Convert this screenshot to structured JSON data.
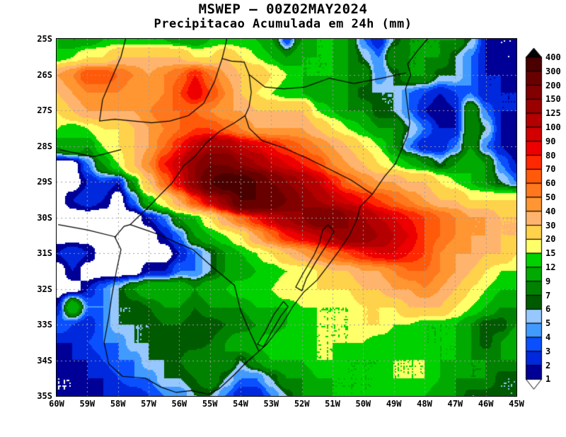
{
  "title": {
    "line1": "MSWEP – 00Z02MAY2024",
    "line2": "Precipitacao Acumulada em 24h (mm)"
  },
  "axes": {
    "lat_ticks": [
      "25S",
      "26S",
      "27S",
      "28S",
      "29S",
      "30S",
      "31S",
      "32S",
      "33S",
      "34S",
      "35S"
    ],
    "lon_ticks": [
      "60W",
      "59W",
      "58W",
      "57W",
      "56W",
      "55W",
      "54W",
      "53W",
      "52W",
      "51W",
      "50W",
      "49W",
      "48W",
      "47W",
      "46W",
      "45W"
    ]
  },
  "chart_data": {
    "type": "heatmap",
    "title": "MSWEP – 00Z02MAY2024",
    "subtitle": "Precipitacao Acumulada em 24h (mm)",
    "units": "mm",
    "lon_extent_deg_west": [
      60,
      45
    ],
    "lat_extent_deg_south": [
      25,
      35
    ],
    "grid": {
      "lon_start_west": 60,
      "lon_step": 0.5,
      "lat_start_south": 25,
      "lat_step": 0.5,
      "values": [
        [
          12,
          9,
          9,
          12,
          12,
          12,
          12,
          12,
          9,
          9,
          12,
          12,
          12,
          12,
          9,
          3,
          9,
          12,
          12,
          9,
          4,
          2,
          6,
          9,
          9,
          9,
          9,
          6,
          2,
          1,
          1
        ],
        [
          12,
          15,
          20,
          20,
          30,
          30,
          30,
          30,
          30,
          20,
          20,
          30,
          20,
          15,
          12,
          9,
          12,
          12,
          12,
          9,
          6,
          4,
          9,
          9,
          9,
          9,
          6,
          4,
          2,
          1,
          1
        ],
        [
          40,
          50,
          70,
          70,
          60,
          50,
          40,
          50,
          60,
          80,
          60,
          40,
          30,
          30,
          20,
          15,
          12,
          12,
          12,
          9,
          9,
          4,
          6,
          9,
          9,
          6,
          6,
          4,
          2,
          2,
          1
        ],
        [
          30,
          40,
          50,
          50,
          50,
          40,
          40,
          50,
          70,
          90,
          70,
          50,
          30,
          20,
          15,
          12,
          12,
          9,
          9,
          9,
          6,
          6,
          6,
          4,
          3,
          2,
          3,
          4,
          2,
          2,
          2
        ],
        [
          20,
          30,
          40,
          40,
          40,
          40,
          50,
          60,
          60,
          60,
          50,
          40,
          40,
          30,
          30,
          30,
          30,
          15,
          12,
          9,
          9,
          6,
          6,
          4,
          2,
          1,
          2,
          9,
          4,
          2,
          2
        ],
        [
          15,
          12,
          15,
          20,
          20,
          30,
          40,
          50,
          60,
          70,
          70,
          60,
          50,
          40,
          40,
          40,
          40,
          30,
          20,
          15,
          12,
          9,
          9,
          6,
          4,
          2,
          2,
          9,
          6,
          2,
          1
        ],
        [
          9,
          12,
          9,
          15,
          20,
          30,
          40,
          60,
          80,
          100,
          125,
          125,
          100,
          90,
          80,
          70,
          60,
          50,
          40,
          30,
          20,
          15,
          9,
          4,
          2,
          2,
          4,
          9,
          4,
          2,
          1
        ],
        [
          0,
          0,
          4,
          9,
          15,
          30,
          50,
          80,
          100,
          150,
          200,
          200,
          150,
          125,
          100,
          90,
          80,
          70,
          50,
          40,
          30,
          20,
          15,
          12,
          9,
          6,
          9,
          12,
          9,
          4,
          2
        ],
        [
          0,
          0,
          2,
          3,
          2,
          9,
          30,
          60,
          90,
          150,
          300,
          400,
          400,
          300,
          200,
          150,
          125,
          100,
          80,
          60,
          50,
          40,
          40,
          30,
          30,
          20,
          15,
          12,
          9,
          6,
          4
        ],
        [
          0,
          2,
          3,
          2,
          0,
          4,
          12,
          20,
          40,
          70,
          100,
          150,
          300,
          300,
          300,
          200,
          150,
          125,
          100,
          90,
          80,
          70,
          60,
          50,
          40,
          30,
          30,
          20,
          20,
          20,
          20
        ],
        [
          0,
          0,
          0,
          0,
          0,
          0,
          2,
          4,
          9,
          12,
          20,
          40,
          60,
          80,
          100,
          125,
          150,
          200,
          200,
          150,
          125,
          100,
          90,
          80,
          70,
          60,
          50,
          40,
          40,
          30,
          30
        ],
        [
          0,
          0,
          0,
          0,
          0,
          0,
          0,
          2,
          4,
          9,
          12,
          15,
          20,
          40,
          60,
          80,
          90,
          100,
          125,
          150,
          150,
          125,
          100,
          90,
          70,
          60,
          50,
          40,
          40,
          30,
          30
        ],
        [
          2,
          3,
          2,
          0,
          0,
          0,
          0,
          0,
          2,
          4,
          6,
          9,
          12,
          15,
          20,
          30,
          40,
          50,
          60,
          70,
          80,
          90,
          90,
          80,
          70,
          50,
          40,
          40,
          30,
          30,
          20
        ],
        [
          0,
          2,
          0,
          0,
          0,
          0,
          2,
          2,
          4,
          4,
          6,
          9,
          9,
          12,
          12,
          15,
          15,
          20,
          30,
          30,
          40,
          40,
          50,
          60,
          60,
          50,
          40,
          30,
          20,
          15,
          15
        ],
        [
          0,
          0,
          2,
          4,
          6,
          9,
          12,
          12,
          12,
          9,
          12,
          12,
          15,
          15,
          15,
          20,
          20,
          20,
          20,
          20,
          30,
          30,
          40,
          40,
          50,
          40,
          30,
          20,
          15,
          12,
          12
        ],
        [
          2,
          12,
          4,
          4,
          6,
          6,
          7,
          9,
          9,
          7,
          9,
          9,
          9,
          12,
          12,
          12,
          15,
          15,
          15,
          15,
          20,
          20,
          20,
          30,
          30,
          30,
          20,
          15,
          12,
          9,
          9
        ],
        [
          4,
          3,
          2,
          4,
          6,
          6,
          6,
          7,
          7,
          6,
          6,
          7,
          7,
          9,
          9,
          12,
          12,
          15,
          15,
          15,
          20,
          20,
          15,
          15,
          12,
          12,
          12,
          9,
          6,
          6,
          9
        ],
        [
          2,
          2,
          3,
          4,
          4,
          6,
          6,
          7,
          6,
          6,
          7,
          9,
          12,
          12,
          15,
          15,
          15,
          15,
          15,
          15,
          15,
          12,
          12,
          12,
          12,
          12,
          12,
          9,
          6,
          9,
          12
        ],
        [
          1,
          2,
          2,
          3,
          4,
          4,
          6,
          6,
          7,
          9,
          9,
          9,
          6,
          9,
          12,
          12,
          12,
          15,
          15,
          12,
          12,
          12,
          15,
          15,
          15,
          12,
          12,
          9,
          9,
          9,
          9
        ],
        [
          1,
          1,
          2,
          2,
          3,
          4,
          4,
          6,
          6,
          7,
          9,
          6,
          4,
          4,
          6,
          9,
          9,
          12,
          12,
          12,
          12,
          12,
          15,
          15,
          15,
          12,
          9,
          9,
          9,
          6,
          6
        ],
        [
          1,
          1,
          1,
          2,
          2,
          2,
          3,
          4,
          4,
          6,
          6,
          4,
          2,
          2,
          4,
          6,
          9,
          9,
          12,
          12,
          12,
          12,
          15,
          12,
          12,
          9,
          9,
          6,
          6,
          6,
          6
        ]
      ]
    },
    "colorbar": {
      "levels": [
        1,
        2,
        3,
        4,
        5,
        6,
        7,
        9,
        12,
        15,
        20,
        30,
        40,
        50,
        60,
        70,
        80,
        90,
        100,
        125,
        150,
        200,
        300,
        400
      ],
      "colors": [
        "#000096",
        "#0028dc",
        "#0a50ff",
        "#419bff",
        "#96c8ff",
        "#005a00",
        "#008200",
        "#00aa00",
        "#00d200",
        "#ffff69",
        "#ffd24b",
        "#ffb46e",
        "#ff9632",
        "#ff781e",
        "#ff5a0a",
        "#ff2800",
        "#ee0000",
        "#d20000",
        "#b40000",
        "#9b0000",
        "#820000",
        "#690000",
        "#4b0000",
        "#2d0000"
      ],
      "below_color": "#ffffff",
      "above_color": "#000000"
    },
    "borders": [
      [
        [
          47.9,
          25.0
        ],
        [
          48.2,
          25.3
        ],
        [
          48.55,
          25.7
        ],
        [
          48.45,
          26.0
        ],
        [
          48.62,
          26.4
        ],
        [
          48.55,
          26.9
        ],
        [
          48.48,
          27.35
        ],
        [
          48.55,
          27.7
        ],
        [
          48.75,
          28.1
        ],
        [
          48.95,
          28.5
        ],
        [
          49.3,
          28.85
        ],
        [
          49.7,
          29.35
        ],
        [
          50.1,
          29.7
        ],
        [
          50.2,
          30.05
        ],
        [
          50.45,
          30.5
        ],
        [
          50.8,
          30.95
        ],
        [
          51.1,
          31.3
        ],
        [
          51.5,
          31.75
        ],
        [
          51.95,
          32.1
        ],
        [
          52.3,
          32.5
        ],
        [
          52.65,
          33.0
        ],
        [
          53.15,
          33.55
        ],
        [
          53.4,
          33.75
        ],
        [
          53.8,
          34.05
        ],
        [
          54.2,
          34.4
        ],
        [
          54.7,
          34.8
        ],
        [
          55.05,
          34.95
        ],
        [
          55.6,
          34.85
        ],
        [
          56.1,
          34.9
        ],
        [
          56.6,
          34.75
        ],
        [
          57.1,
          34.5
        ],
        [
          57.85,
          34.45
        ],
        [
          58.3,
          34.1
        ],
        [
          58.45,
          33.5
        ],
        [
          58.3,
          32.8
        ],
        [
          58.2,
          32.2
        ],
        [
          58.05,
          31.5
        ],
        [
          57.9,
          30.9
        ],
        [
          58.1,
          30.55
        ],
        [
          57.8,
          30.25
        ],
        [
          57.6,
          30.2
        ],
        [
          57.3,
          29.95
        ],
        [
          57.05,
          29.75
        ],
        [
          56.6,
          29.35
        ],
        [
          56.25,
          29.05
        ],
        [
          55.85,
          28.55
        ],
        [
          55.5,
          28.3
        ],
        [
          55.1,
          27.9
        ],
        [
          54.7,
          27.6
        ],
        [
          54.2,
          27.35
        ],
        [
          53.85,
          27.15
        ],
        [
          53.72,
          26.9
        ],
        [
          53.65,
          26.5
        ],
        [
          53.72,
          26.0
        ],
        [
          53.88,
          25.65
        ],
        [
          54.3,
          25.62
        ],
        [
          54.6,
          25.55
        ],
        [
          54.5,
          25.2
        ],
        [
          54.45,
          25.0
        ]
      ],
      [
        [
          48.6,
          25.95
        ],
        [
          49.4,
          26.1
        ],
        [
          50.3,
          26.25
        ],
        [
          51.1,
          26.1
        ],
        [
          51.9,
          26.35
        ],
        [
          52.6,
          26.4
        ],
        [
          53.2,
          26.35
        ],
        [
          53.72,
          26.0
        ]
      ],
      [
        [
          49.7,
          29.35
        ],
        [
          50.4,
          28.95
        ],
        [
          51.1,
          28.65
        ],
        [
          51.8,
          28.35
        ],
        [
          52.6,
          28.05
        ],
        [
          53.3,
          27.85
        ],
        [
          53.72,
          27.5
        ],
        [
          53.85,
          27.15
        ]
      ],
      [
        [
          53.4,
          33.75
        ],
        [
          53.7,
          33.2
        ],
        [
          54.0,
          32.6
        ],
        [
          54.2,
          31.9
        ],
        [
          54.9,
          31.4
        ],
        [
          55.55,
          30.9
        ],
        [
          56.1,
          30.7
        ],
        [
          56.6,
          30.5
        ],
        [
          57.1,
          30.35
        ],
        [
          57.6,
          30.2
        ]
      ],
      [
        [
          51.15,
          30.2
        ],
        [
          50.95,
          30.4
        ],
        [
          51.25,
          30.85
        ],
        [
          51.55,
          31.25
        ],
        [
          51.85,
          31.7
        ],
        [
          52.0,
          32.05
        ],
        [
          52.2,
          31.95
        ],
        [
          51.95,
          31.55
        ],
        [
          51.6,
          31.05
        ],
        [
          51.42,
          30.7
        ],
        [
          51.32,
          30.35
        ],
        [
          51.15,
          30.2
        ]
      ],
      [
        [
          52.6,
          32.35
        ],
        [
          52.9,
          32.7
        ],
        [
          53.2,
          33.2
        ],
        [
          53.45,
          33.55
        ],
        [
          53.25,
          33.62
        ],
        [
          52.95,
          33.15
        ],
        [
          52.68,
          32.75
        ],
        [
          52.45,
          32.5
        ],
        [
          52.6,
          32.35
        ]
      ],
      [
        [
          54.6,
          25.55
        ],
        [
          54.85,
          26.2
        ],
        [
          55.2,
          26.8
        ],
        [
          55.7,
          27.15
        ],
        [
          56.3,
          27.3
        ],
        [
          56.9,
          27.35
        ],
        [
          57.5,
          27.3
        ],
        [
          58.1,
          27.25
        ],
        [
          58.6,
          27.3
        ],
        [
          58.5,
          26.7
        ],
        [
          58.2,
          26.1
        ],
        [
          57.9,
          25.5
        ],
        [
          57.75,
          25.0
        ]
      ],
      [
        [
          58.05,
          30.55
        ],
        [
          59.0,
          30.35
        ],
        [
          59.95,
          30.2
        ]
      ],
      [
        [
          57.9,
          28.1
        ],
        [
          58.8,
          28.3
        ],
        [
          59.9,
          28.1
        ]
      ]
    ]
  }
}
